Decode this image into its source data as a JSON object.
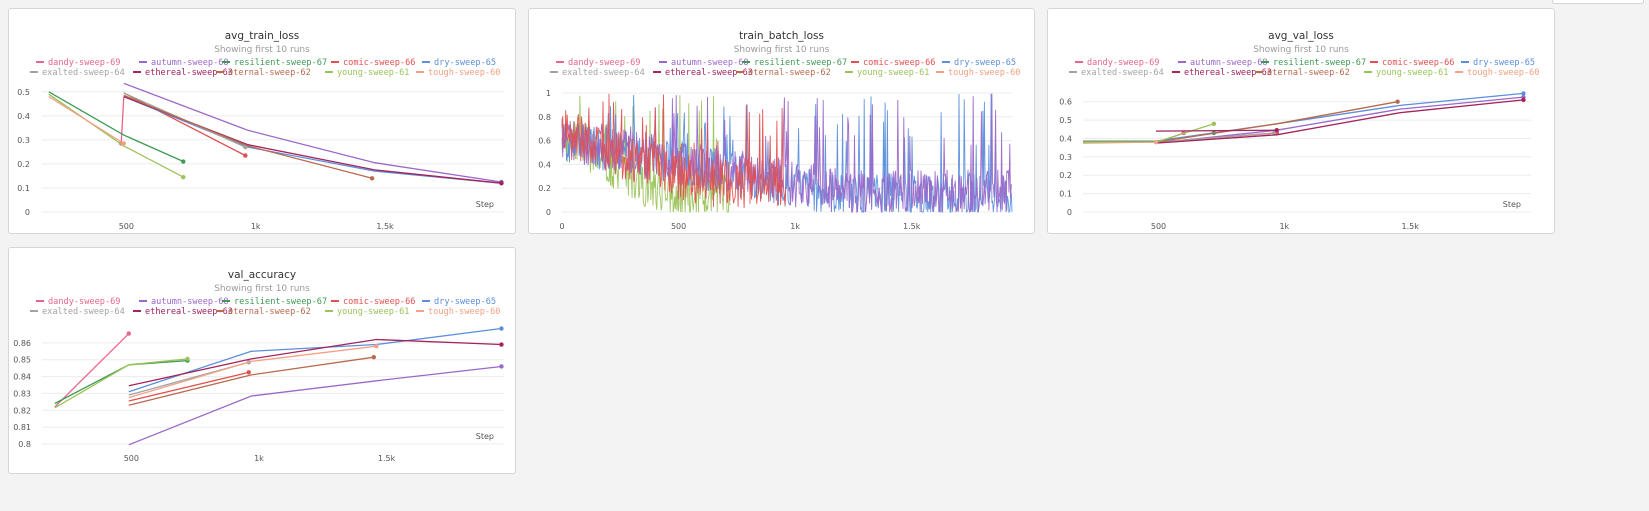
{
  "runs": [
    {
      "name": "dandy-sweep-69",
      "color": "#e8658a"
    },
    {
      "name": "autumn-sweep-68",
      "color": "#9a68c9"
    },
    {
      "name": "resilient-sweep-67",
      "color": "#3f9a55"
    },
    {
      "name": "comic-sweep-66",
      "color": "#e15050"
    },
    {
      "name": "dry-sweep-65",
      "color": "#5b8fdc"
    },
    {
      "name": "exalted-sweep-64",
      "color": "#a3a3a3"
    },
    {
      "name": "ethereal-sweep-63",
      "color": "#a3235a"
    },
    {
      "name": "eternal-sweep-62",
      "color": "#b86a4c"
    },
    {
      "name": "young-sweep-61",
      "color": "#9bc35a"
    },
    {
      "name": "tough-sweep-60",
      "color": "#f2a184"
    }
  ],
  "chart_data": [
    {
      "id": "avg_train_loss",
      "type": "line",
      "title": "avg_train_loss",
      "subtitle": "Showing first 10 runs",
      "xlabel": "Step",
      "xlim": [
        170,
        1960
      ],
      "ylim": [
        0,
        0.52
      ],
      "xticks": [
        {
          "v": 500,
          "label": "500"
        },
        {
          "v": 1000,
          "label": "1k"
        },
        {
          "v": 1500,
          "label": "1.5k"
        }
      ],
      "yticks": [
        {
          "v": 0,
          "label": "0"
        },
        {
          "v": 0.1,
          "label": "0.1"
        },
        {
          "v": 0.2,
          "label": "0.2"
        },
        {
          "v": 0.3,
          "label": "0.3"
        },
        {
          "v": 0.4,
          "label": "0.4"
        },
        {
          "v": 0.5,
          "label": "0.5"
        }
      ],
      "series": [
        {
          "run": 0,
          "points": [
            [
              490,
              0.48
            ],
            [
              480,
              0.285
            ]
          ]
        },
        {
          "run": 1,
          "points": [
            [
              490,
              0.535
            ],
            [
              970,
              0.34
            ],
            [
              1460,
              0.205
            ],
            [
              1950,
              0.125
            ]
          ]
        },
        {
          "run": 2,
          "points": [
            [
              200,
              0.5
            ],
            [
              490,
              0.32
            ],
            [
              720,
              0.21
            ]
          ]
        },
        {
          "run": 3,
          "points": [
            [
              490,
              0.495
            ],
            [
              960,
              0.235
            ]
          ]
        },
        {
          "run": 4,
          "points": [
            [
              490,
              0.48
            ],
            [
              970,
              0.27
            ],
            [
              1460,
              0.17
            ],
            [
              1950,
              0.12
            ]
          ]
        },
        {
          "run": 5,
          "points": [
            [
              490,
              0.495
            ],
            [
              960,
              0.27
            ]
          ]
        },
        {
          "run": 6,
          "points": [
            [
              490,
              0.48
            ],
            [
              970,
              0.28
            ],
            [
              1460,
              0.175
            ],
            [
              1950,
              0.12
            ]
          ]
        },
        {
          "run": 7,
          "points": [
            [
              490,
              0.485
            ],
            [
              970,
              0.275
            ],
            [
              1450,
              0.14
            ]
          ]
        },
        {
          "run": 8,
          "points": [
            [
              200,
              0.49
            ],
            [
              490,
              0.275
            ],
            [
              720,
              0.145
            ]
          ]
        },
        {
          "run": 9,
          "points": [
            [
              200,
              0.48
            ],
            [
              490,
              0.285
            ]
          ]
        }
      ]
    },
    {
      "id": "train_batch_loss",
      "type": "line",
      "title": "train_batch_loss",
      "subtitle": "Showing first 10 runs",
      "xlabel": "",
      "xlim": [
        0,
        1930
      ],
      "ylim": [
        0,
        1.05
      ],
      "xticks": [
        {
          "v": 0,
          "label": "0"
        },
        {
          "v": 500,
          "label": "500"
        },
        {
          "v": 1000,
          "label": "1k"
        },
        {
          "v": 1500,
          "label": "1.5k"
        }
      ],
      "yticks": [
        {
          "v": 0,
          "label": "0"
        },
        {
          "v": 0.2,
          "label": "0.2"
        },
        {
          "v": 0.4,
          "label": "0.4"
        },
        {
          "v": 0.6,
          "label": "0.6"
        },
        {
          "v": 0.8,
          "label": "0.8"
        },
        {
          "v": 1,
          "label": "1"
        }
      ],
      "noise": [
        {
          "run": 8,
          "x0": 0,
          "x1": 720,
          "base0": 0.62,
          "base1": 0.12,
          "amp": 0.4,
          "spike": 0.08,
          "seed": 3
        },
        {
          "run": 4,
          "x0": 0,
          "x1": 1930,
          "base0": 0.58,
          "base1": 0.12,
          "amp": 0.38,
          "spike": 0.07,
          "seed": 7
        },
        {
          "run": 1,
          "x0": 0,
          "x1": 1930,
          "base0": 0.6,
          "base1": 0.14,
          "amp": 0.4,
          "spike": 0.07,
          "seed": 11
        },
        {
          "run": 3,
          "x0": 0,
          "x1": 960,
          "base0": 0.65,
          "base1": 0.22,
          "amp": 0.42,
          "spike": 0.06,
          "seed": 19
        }
      ]
    },
    {
      "id": "avg_val_loss",
      "type": "line",
      "title": "avg_val_loss",
      "subtitle": "Showing first 10 runs",
      "xlabel": "Step",
      "xlim": [
        200,
        1980
      ],
      "ylim": [
        0,
        0.68
      ],
      "xticks": [
        {
          "v": 500,
          "label": "500"
        },
        {
          "v": 1000,
          "label": "1k"
        },
        {
          "v": 1500,
          "label": "1.5k"
        }
      ],
      "yticks": [
        {
          "v": 0,
          "label": "0"
        },
        {
          "v": 0.1,
          "label": "0.1"
        },
        {
          "v": 0.2,
          "label": "0.2"
        },
        {
          "v": 0.3,
          "label": "0.3"
        },
        {
          "v": 0.4,
          "label": "0.4"
        },
        {
          "v": 0.5,
          "label": "0.5"
        },
        {
          "v": 0.6,
          "label": "0.6"
        }
      ],
      "series": [
        {
          "run": 0,
          "points": [
            [
              490,
              0.375
            ],
            [
              600,
              0.43
            ]
          ]
        },
        {
          "run": 1,
          "points": [
            [
              490,
              0.375
            ],
            [
              970,
              0.445
            ],
            [
              1460,
              0.56
            ],
            [
              1950,
              0.625
            ]
          ]
        },
        {
          "run": 2,
          "points": [
            [
              200,
              0.385
            ],
            [
              490,
              0.385
            ],
            [
              720,
              0.43
            ]
          ]
        },
        {
          "run": 3,
          "points": [
            [
              490,
              0.38
            ],
            [
              970,
              0.43
            ]
          ]
        },
        {
          "run": 4,
          "points": [
            [
              490,
              0.385
            ],
            [
              970,
              0.48
            ],
            [
              1460,
              0.58
            ],
            [
              1950,
              0.645
            ]
          ]
        },
        {
          "run": 5,
          "points": [
            [
              490,
              0.38
            ],
            [
              960,
              0.43
            ]
          ]
        },
        {
          "run": 6,
          "points": [
            [
              490,
              0.375
            ],
            [
              970,
              0.42
            ],
            [
              1460,
              0.54
            ],
            [
              1950,
              0.61
            ]
          ]
        },
        {
          "run": 7,
          "points": [
            [
              490,
              0.38
            ],
            [
              970,
              0.48
            ],
            [
              1450,
              0.6
            ]
          ]
        },
        {
          "run": 8,
          "points": [
            [
              200,
              0.375
            ],
            [
              490,
              0.38
            ],
            [
              720,
              0.48
            ]
          ]
        },
        {
          "run": 9,
          "points": [
            [
              200,
              0.38
            ],
            [
              490,
              0.38
            ]
          ]
        },
        {
          "run": 6,
          "points": [
            [
              490,
              0.44
            ],
            [
              970,
              0.445
            ]
          ]
        }
      ]
    },
    {
      "id": "val_accuracy",
      "type": "line",
      "title": "val_accuracy",
      "subtitle": "Showing first 10 runs",
      "xlabel": "Step",
      "xlim": [
        150,
        1960
      ],
      "ylim": [
        0.8,
        0.87
      ],
      "xticks": [
        {
          "v": 500,
          "label": "500"
        },
        {
          "v": 1000,
          "label": "1k"
        },
        {
          "v": 1500,
          "label": "1.5k"
        }
      ],
      "yticks": [
        {
          "v": 0.8,
          "label": "0.8"
        },
        {
          "v": 0.81,
          "label": "0.81"
        },
        {
          "v": 0.82,
          "label": "0.82"
        },
        {
          "v": 0.83,
          "label": "0.83"
        },
        {
          "v": 0.84,
          "label": "0.84"
        },
        {
          "v": 0.85,
          "label": "0.85"
        },
        {
          "v": 0.86,
          "label": "0.86"
        }
      ],
      "series": [
        {
          "run": 0,
          "points": [
            [
              200,
              0.822
            ],
            [
              490,
              0.8655
            ]
          ]
        },
        {
          "run": 1,
          "points": [
            [
              490,
              0.7995
            ],
            [
              970,
              0.8285
            ],
            [
              1460,
              0.8375
            ],
            [
              1950,
              0.846
            ]
          ]
        },
        {
          "run": 2,
          "points": [
            [
              200,
              0.824
            ],
            [
              490,
              0.847
            ],
            [
              720,
              0.8495
            ]
          ]
        },
        {
          "run": 3,
          "points": [
            [
              490,
              0.8255
            ],
            [
              960,
              0.8425
            ]
          ]
        },
        {
          "run": 4,
          "points": [
            [
              490,
              0.831
            ],
            [
              970,
              0.855
            ],
            [
              1460,
              0.859
            ],
            [
              1950,
              0.8685
            ]
          ]
        },
        {
          "run": 5,
          "points": [
            [
              490,
              0.829
            ],
            [
              960,
              0.8485
            ]
          ]
        },
        {
          "run": 6,
          "points": [
            [
              490,
              0.8345
            ],
            [
              970,
              0.8505
            ],
            [
              1460,
              0.862
            ],
            [
              1950,
              0.859
            ]
          ]
        },
        {
          "run": 7,
          "points": [
            [
              490,
              0.823
            ],
            [
              970,
              0.841
            ],
            [
              1450,
              0.8515
            ]
          ]
        },
        {
          "run": 8,
          "points": [
            [
              200,
              0.8215
            ],
            [
              490,
              0.847
            ],
            [
              720,
              0.8505
            ]
          ]
        },
        {
          "run": 9,
          "points": [
            [
              490,
              0.8275
            ],
            [
              970,
              0.849
            ],
            [
              1460,
              0.858
            ]
          ]
        }
      ]
    }
  ]
}
